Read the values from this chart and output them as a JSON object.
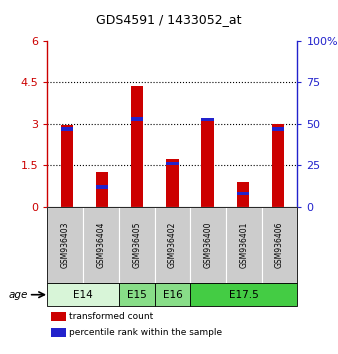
{
  "title": "GDS4591 / 1433052_at",
  "samples": [
    "GSM936403",
    "GSM936404",
    "GSM936405",
    "GSM936402",
    "GSM936400",
    "GSM936401",
    "GSM936406"
  ],
  "transformed_count": [
    2.95,
    1.25,
    4.35,
    1.72,
    3.2,
    0.9,
    3.0
  ],
  "percentile_rank": [
    47,
    12,
    53,
    26,
    53,
    8,
    47
  ],
  "left_ylim": [
    0,
    6
  ],
  "left_yticks": [
    0,
    1.5,
    3.0,
    4.5,
    6
  ],
  "left_ytick_labels": [
    "0",
    "1.5",
    "3",
    "4.5",
    "6"
  ],
  "right_ylim": [
    0,
    100
  ],
  "right_yticks": [
    0,
    25,
    50,
    75,
    100
  ],
  "right_ytick_labels": [
    "0",
    "25",
    "50",
    "75",
    "100%"
  ],
  "bar_color_red": "#cc0000",
  "bar_color_blue": "#2222cc",
  "age_groups": [
    {
      "label": "E14",
      "samples": [
        "GSM936403",
        "GSM936404"
      ],
      "color": "#d8f5d8"
    },
    {
      "label": "E15",
      "samples": [
        "GSM936405"
      ],
      "color": "#88dd88"
    },
    {
      "label": "E16",
      "samples": [
        "GSM936402"
      ],
      "color": "#88dd88"
    },
    {
      "label": "E17.5",
      "samples": [
        "GSM936400",
        "GSM936401",
        "GSM936406"
      ],
      "color": "#44cc44"
    }
  ],
  "sample_box_color": "#cccccc",
  "dotted_lines": [
    1.5,
    3.0,
    4.5
  ],
  "bar_width": 0.35,
  "blue_band_thickness": 0.12,
  "legend_red_label": "transformed count",
  "legend_blue_label": "percentile rank within the sample",
  "age_label": "age"
}
